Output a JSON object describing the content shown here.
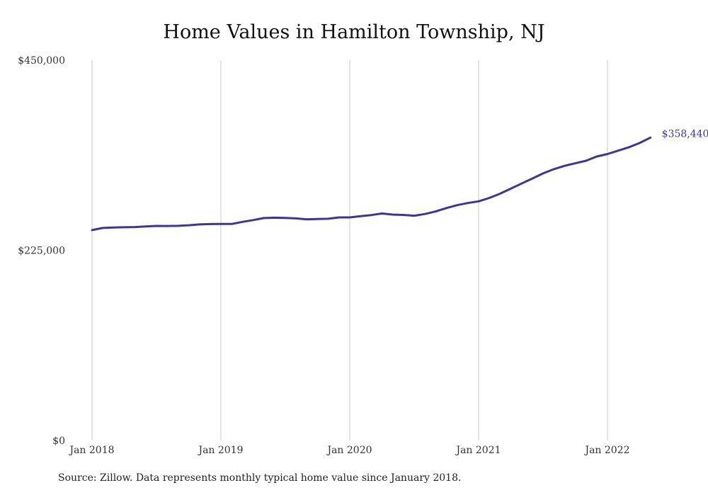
{
  "colors": {
    "line": "#3f3599",
    "grid": "#c9c9c9",
    "text": "#333333"
  },
  "source": "Source: Zillow. Data represents monthly typical home value since January 2018.",
  "chart_data": {
    "type": "line",
    "title": "Home Values in Hamilton Township, NJ",
    "xlabel": "",
    "ylabel": "",
    "ylim": [
      0,
      450000
    ],
    "yticks": [
      0,
      225000,
      450000
    ],
    "ytick_labels": [
      "$0",
      "$225,000",
      "$450,000"
    ],
    "xlim": [
      "2018-01",
      "2022-06"
    ],
    "xticks": [
      "2018-01",
      "2019-01",
      "2020-01",
      "2021-01",
      "2022-01"
    ],
    "xtick_labels": [
      "Jan 2018",
      "Jan 2019",
      "Jan 2020",
      "Jan 2021",
      "Jan 2022"
    ],
    "grid": {
      "vertical": true,
      "horizontal": false
    },
    "end_label": "$358,440",
    "series": [
      {
        "x": [
          "2018-01",
          "2018-02",
          "2018-03",
          "2018-04",
          "2018-05",
          "2018-06",
          "2018-07",
          "2018-08",
          "2018-09",
          "2018-10",
          "2018-11",
          "2018-12",
          "2019-01",
          "2019-02",
          "2019-03",
          "2019-04",
          "2019-05",
          "2019-06",
          "2019-07",
          "2019-08",
          "2019-09",
          "2019-10",
          "2019-11",
          "2019-12",
          "2020-01",
          "2020-02",
          "2020-03",
          "2020-04",
          "2020-05",
          "2020-06",
          "2020-07",
          "2020-08",
          "2020-09",
          "2020-10",
          "2020-11",
          "2020-12",
          "2021-01",
          "2021-02",
          "2021-03",
          "2021-04",
          "2021-05",
          "2021-06",
          "2021-07",
          "2021-08",
          "2021-09",
          "2021-10",
          "2021-11",
          "2021-12",
          "2022-01",
          "2022-02",
          "2022-03",
          "2022-04",
          "2022-05"
        ],
        "values": [
          249000,
          251500,
          252000,
          252300,
          252600,
          253200,
          253900,
          253800,
          254000,
          254700,
          255700,
          256100,
          256200,
          256200,
          258700,
          260800,
          263200,
          263600,
          263400,
          262800,
          261700,
          262000,
          262400,
          264000,
          264000,
          265500,
          266700,
          268600,
          267300,
          266900,
          266000,
          268000,
          271000,
          275000,
          278500,
          281000,
          283000,
          287000,
          292000,
          298000,
          304000,
          310000,
          316000,
          321000,
          325000,
          328000,
          331000,
          336000,
          339000,
          343000,
          347000,
          352000,
          358440
        ]
      }
    ]
  }
}
